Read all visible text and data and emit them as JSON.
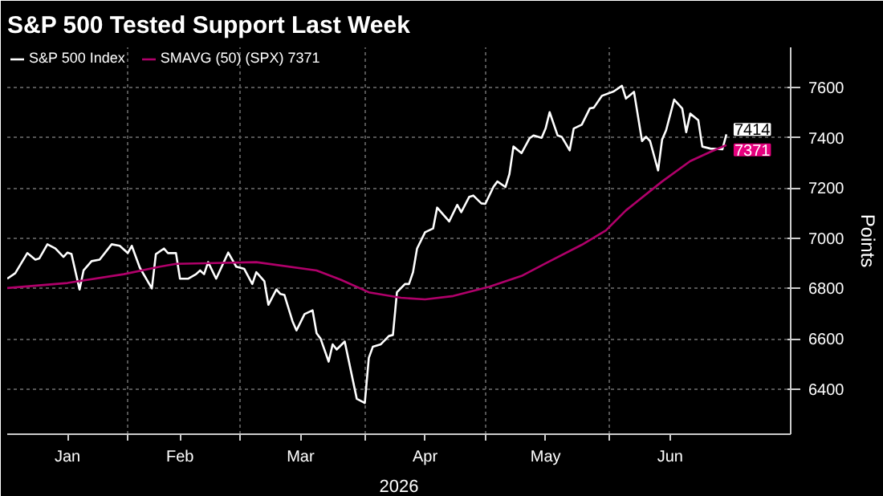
{
  "chart_data": {
    "type": "line",
    "title": "S&P 500 Tested Support Last Week",
    "xlabel": "2026",
    "ylabel": "Points",
    "series": [
      {
        "name": "S&P 500 Index",
        "color": "#ffffff",
        "x": [
          "2026-01-02",
          "2026-01-04",
          "2026-01-07",
          "2026-01-09",
          "2026-01-10",
          "2026-01-12",
          "2026-01-14",
          "2026-01-16",
          "2026-01-17",
          "2026-01-18",
          "2026-01-20",
          "2026-01-21",
          "2026-01-23",
          "2026-01-25",
          "2026-01-28",
          "2026-01-30",
          "2026-02-01",
          "2026-02-02",
          "2026-02-04",
          "2026-02-07",
          "2026-02-08",
          "2026-02-10",
          "2026-02-11",
          "2026-02-13",
          "2026-02-14",
          "2026-02-16",
          "2026-02-18",
          "2026-02-19",
          "2026-02-20",
          "2026-02-21",
          "2026-02-23",
          "2026-02-26",
          "2026-02-28",
          "2026-03-02",
          "2026-03-04",
          "2026-03-05",
          "2026-03-07",
          "2026-03-08",
          "2026-03-10",
          "2026-03-11",
          "2026-03-12",
          "2026-03-14",
          "2026-03-15",
          "2026-03-17",
          "2026-03-19",
          "2026-03-20",
          "2026-03-21",
          "2026-03-23",
          "2026-03-24",
          "2026-03-25",
          "2026-03-27",
          "2026-03-30",
          "2026-04-01",
          "2026-04-02",
          "2026-04-03",
          "2026-04-05",
          "2026-04-07",
          "2026-04-08",
          "2026-04-09",
          "2026-04-11",
          "2026-04-12",
          "2026-04-13",
          "2026-04-14",
          "2026-04-16",
          "2026-04-18",
          "2026-04-19",
          "2026-04-22",
          "2026-04-24",
          "2026-04-25",
          "2026-04-27",
          "2026-04-28",
          "2026-04-30",
          "2026-05-01",
          "2026-05-03",
          "2026-05-04",
          "2026-05-06",
          "2026-05-07",
          "2026-05-08",
          "2026-05-10",
          "2026-05-12",
          "2026-05-13",
          "2026-05-15",
          "2026-05-16",
          "2026-05-17",
          "2026-05-19",
          "2026-05-20",
          "2026-05-22",
          "2026-05-23",
          "2026-05-25",
          "2026-05-27",
          "2026-05-28",
          "2026-05-30",
          "2026-06-02",
          "2026-06-04",
          "2026-06-05",
          "2026-06-07",
          "2026-06-09",
          "2026-06-10",
          "2026-06-11",
          "2026-06-13",
          "2026-06-14",
          "2026-06-15",
          "2026-06-17",
          "2026-06-19",
          "2026-06-20",
          "2026-06-21",
          "2026-06-23",
          "2026-06-24",
          "2026-06-26",
          "2026-06-29",
          "2026-06-30"
        ],
        "values": [
          6839,
          6861,
          6941,
          6915,
          6920,
          6976,
          6959,
          6926,
          6943,
          6937,
          6796,
          6872,
          6909,
          6915,
          6976,
          6970,
          6941,
          6970,
          6883,
          6800,
          6937,
          6959,
          6941,
          6941,
          6839,
          6839,
          6857,
          6872,
          6857,
          6905,
          6839,
          6943,
          6887,
          6878,
          6818,
          6865,
          6829,
          6735,
          6796,
          6778,
          6774,
          6670,
          6633,
          6698,
          6713,
          6622,
          6600,
          6509,
          6578,
          6557,
          6589,
          6361,
          6344,
          6524,
          6568,
          6578,
          6611,
          6615,
          6785,
          6818,
          6818,
          6865,
          6959,
          7024,
          7039,
          7122,
          7067,
          7133,
          7104,
          7165,
          7170,
          7139,
          7137,
          7204,
          7226,
          7204,
          7256,
          7365,
          7339,
          7398,
          7409,
          7400,
          7437,
          7502,
          7409,
          7404,
          7350,
          7437,
          7452,
          7517,
          7520,
          7567,
          7585,
          7607,
          7556,
          7583,
          7387,
          7404,
          7387,
          7270,
          7393,
          7430,
          7552,
          7517,
          7422,
          7496,
          7470,
          7365,
          7357,
          7354,
          7414
        ]
      },
      {
        "name": "SMAVG (50) (SPX) 7371",
        "color": "#b0006a",
        "x": [
          "2026-01-02",
          "2026-01-17",
          "2026-01-31",
          "2026-02-09",
          "2026-02-13",
          "2026-03-05",
          "2026-03-20",
          "2026-03-26",
          "2026-04-02",
          "2026-04-10",
          "2026-04-16",
          "2026-04-23",
          "2026-05-02",
          "2026-05-10",
          "2026-05-16",
          "2026-05-25",
          "2026-05-31",
          "2026-06-05",
          "2026-06-14",
          "2026-06-21",
          "2026-06-26",
          "2026-06-30"
        ],
        "values": [
          6802,
          6822,
          6857,
          6887,
          6898,
          6905,
          6872,
          6835,
          6785,
          6763,
          6757,
          6770,
          6807,
          6850,
          6900,
          6974,
          7031,
          7111,
          7226,
          7307,
          7344,
          7371
        ]
      }
    ],
    "annotations": [
      {
        "text": "7414",
        "x": "2026-06-30",
        "y": 7414
      },
      {
        "text": "7371",
        "x": "2026-06-30",
        "y": 7371
      }
    ],
    "xlim": [
      "2026-01-02",
      "2026-07-16"
    ],
    "xticks": [
      {
        "value": "2026-01-17",
        "label": "Jan"
      },
      {
        "value": "2026-02-01",
        "label": null
      },
      {
        "value": "2026-02-14",
        "label": "Feb"
      },
      {
        "value": "2026-03-01",
        "label": null
      },
      {
        "value": "2026-03-16",
        "label": "Mar"
      },
      {
        "value": "2026-04-01",
        "label": null
      },
      {
        "value": "2026-04-16",
        "label": "Apr"
      },
      {
        "value": "2026-05-01",
        "label": null
      },
      {
        "value": "2026-05-16",
        "label": "May"
      },
      {
        "value": "2026-06-01",
        "label": null
      },
      {
        "value": "2026-06-16",
        "label": "Jun"
      }
    ],
    "ylim": [
      6220,
      7760
    ],
    "yticks": [
      6400,
      6600,
      6800,
      7000,
      7200,
      7400,
      7600
    ],
    "grid": true,
    "legend": "top left",
    "marker": "none",
    "line_style": "solid"
  }
}
